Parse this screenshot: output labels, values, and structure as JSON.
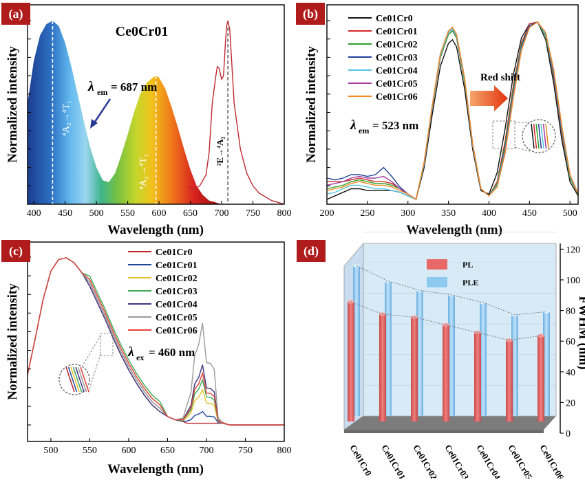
{
  "panels": {
    "a": {
      "label": "(a)",
      "title": "Ce0Cr01",
      "lambda_sym": "λ",
      "lambda_sub": "em",
      "lambda_eq": "= 687 nm",
      "trans1": "⁴A₂→⁴T₁",
      "trans2": "⁴A₂→⁴T₁",
      "trans3": "²E→⁴A₂"
    },
    "b": {
      "label": "(b)",
      "red_shift": "Red shift",
      "lambda_sym": "λ",
      "lambda_sub": "em",
      "lambda_eq": "= 523 nm"
    },
    "c": {
      "label": "(c)",
      "lambda_sym": "λ",
      "lambda_sub": "ex",
      "lambda_eq": "= 460 nm"
    },
    "d": {
      "label": "(d)",
      "ylabel": "FWHM (nm)"
    }
  },
  "chart_data": [
    {
      "type": "line",
      "panel": "a",
      "xlabel": "Wavelength (nm)",
      "ylabel": "Normalized intensity",
      "xlim": [
        390,
        800
      ],
      "xticks": [
        400,
        450,
        500,
        550,
        600,
        650,
        700,
        750,
        800
      ],
      "series": [
        {
          "role": "excitation (filled)",
          "x": [
            390,
            400,
            410,
            420,
            430,
            440,
            450,
            460,
            470,
            480,
            490,
            500,
            510,
            520,
            530,
            540,
            550,
            560,
            570,
            580,
            590,
            595,
            600,
            610,
            620,
            630,
            640,
            650,
            660,
            670,
            680,
            690,
            700
          ],
          "y": [
            0.55,
            0.78,
            0.92,
            0.98,
            1.0,
            0.97,
            0.88,
            0.75,
            0.6,
            0.45,
            0.31,
            0.2,
            0.13,
            0.12,
            0.17,
            0.27,
            0.38,
            0.5,
            0.6,
            0.66,
            0.69,
            0.7,
            0.69,
            0.63,
            0.53,
            0.42,
            0.3,
            0.19,
            0.1,
            0.05,
            0.02,
            0.01,
            0.0
          ],
          "color": "#333333"
        },
        {
          "role": "emission",
          "x": [
            645,
            655,
            665,
            675,
            680,
            685,
            690,
            693,
            696,
            700,
            703,
            706,
            708,
            710,
            713,
            716,
            720,
            730,
            740,
            750,
            760,
            770,
            780,
            790,
            800
          ],
          "y": [
            0.1,
            0.08,
            0.1,
            0.16,
            0.28,
            0.55,
            0.68,
            0.75,
            0.74,
            0.68,
            0.7,
            0.88,
            0.97,
            1.0,
            0.95,
            0.78,
            0.55,
            0.3,
            0.17,
            0.1,
            0.06,
            0.04,
            0.02,
            0.01,
            0.0
          ],
          "color": "#c0272d"
        }
      ],
      "markers": [
        430,
        595,
        710
      ]
    },
    {
      "type": "line",
      "panel": "b",
      "xlabel": "Wavelength (nm)",
      "ylabel": "Normalized intensity",
      "xlim": [
        200,
        510
      ],
      "xticks": [
        200,
        250,
        300,
        350,
        400,
        450,
        500
      ],
      "x": [
        200,
        210,
        220,
        230,
        240,
        250,
        260,
        270,
        280,
        290,
        300,
        310,
        320,
        330,
        340,
        350,
        355,
        360,
        370,
        380,
        390,
        400,
        410,
        420,
        430,
        440,
        450,
        460,
        470,
        480,
        490,
        500,
        510
      ],
      "series": [
        {
          "name": "Ce01Cr0",
          "color": "#111111",
          "y": [
            0.0,
            0.02,
            0.04,
            0.06,
            0.06,
            0.05,
            0.05,
            0.05,
            0.05,
            0.04,
            0.02,
            0.0,
            0.18,
            0.48,
            0.75,
            0.88,
            0.9,
            0.86,
            0.62,
            0.28,
            0.05,
            0.03,
            0.15,
            0.4,
            0.7,
            0.91,
            0.99,
            1.0,
            0.9,
            0.65,
            0.33,
            0.1,
            0.02
          ]
        },
        {
          "name": "Ce01Cr01",
          "color": "#d62728",
          "y": [
            0.1,
            0.1,
            0.1,
            0.11,
            0.12,
            0.11,
            0.1,
            0.1,
            0.09,
            0.06,
            0.03,
            0.0,
            0.2,
            0.52,
            0.8,
            0.93,
            0.95,
            0.91,
            0.66,
            0.3,
            0.06,
            0.02,
            0.1,
            0.33,
            0.64,
            0.88,
            0.99,
            1.0,
            0.92,
            0.68,
            0.36,
            0.12,
            0.03
          ]
        },
        {
          "name": "Ce01Cr02",
          "color": "#2ca02c",
          "y": [
            0.06,
            0.07,
            0.08,
            0.1,
            0.11,
            0.1,
            0.09,
            0.09,
            0.08,
            0.06,
            0.03,
            0.0,
            0.2,
            0.52,
            0.8,
            0.93,
            0.95,
            0.91,
            0.66,
            0.3,
            0.06,
            0.02,
            0.09,
            0.31,
            0.62,
            0.87,
            0.98,
            1.0,
            0.92,
            0.69,
            0.37,
            0.12,
            0.03
          ]
        },
        {
          "name": "Ce01Cr03",
          "color": "#1f3d99",
          "y": [
            0.12,
            0.11,
            0.12,
            0.14,
            0.14,
            0.13,
            0.14,
            0.18,
            0.13,
            0.07,
            0.03,
            0.0,
            0.2,
            0.52,
            0.81,
            0.94,
            0.96,
            0.92,
            0.67,
            0.3,
            0.06,
            0.02,
            0.08,
            0.29,
            0.6,
            0.86,
            0.98,
            1.0,
            0.93,
            0.7,
            0.38,
            0.13,
            0.03
          ]
        },
        {
          "name": "Ce01Cr04",
          "color": "#56c4e0",
          "y": [
            0.03,
            0.04,
            0.06,
            0.08,
            0.08,
            0.07,
            0.06,
            0.06,
            0.05,
            0.04,
            0.02,
            0.0,
            0.2,
            0.52,
            0.81,
            0.94,
            0.96,
            0.92,
            0.67,
            0.3,
            0.06,
            0.02,
            0.08,
            0.28,
            0.59,
            0.85,
            0.97,
            1.0,
            0.93,
            0.71,
            0.39,
            0.13,
            0.03
          ]
        },
        {
          "name": "Ce01Cr05",
          "color": "#a13ca1",
          "y": [
            0.08,
            0.09,
            0.1,
            0.12,
            0.13,
            0.12,
            0.12,
            0.13,
            0.1,
            0.06,
            0.03,
            0.0,
            0.21,
            0.53,
            0.82,
            0.95,
            0.97,
            0.93,
            0.68,
            0.31,
            0.06,
            0.02,
            0.07,
            0.27,
            0.58,
            0.84,
            0.97,
            1.0,
            0.94,
            0.72,
            0.4,
            0.14,
            0.03
          ]
        },
        {
          "name": "Ce01Cr06",
          "color": "#f08a1c",
          "y": [
            0.05,
            0.06,
            0.07,
            0.09,
            0.1,
            0.09,
            0.08,
            0.08,
            0.07,
            0.05,
            0.03,
            0.0,
            0.21,
            0.53,
            0.82,
            0.95,
            0.97,
            0.93,
            0.68,
            0.31,
            0.06,
            0.02,
            0.07,
            0.26,
            0.57,
            0.84,
            0.97,
            1.0,
            0.94,
            0.73,
            0.41,
            0.14,
            0.03
          ]
        }
      ]
    },
    {
      "type": "line",
      "panel": "c",
      "xlabel": "Wavelength (nm)",
      "ylabel": "Normalized intensity",
      "xlim": [
        470,
        800
      ],
      "xticks": [
        500,
        550,
        600,
        650,
        700,
        750,
        800
      ],
      "x": [
        470,
        480,
        490,
        500,
        510,
        520,
        530,
        540,
        550,
        560,
        570,
        580,
        590,
        600,
        610,
        620,
        630,
        640,
        650,
        660,
        670,
        675,
        680,
        685,
        690,
        695,
        700,
        705,
        710,
        715,
        720,
        730,
        740,
        750,
        760,
        770,
        780,
        790,
        800
      ],
      "series": [
        {
          "name": "Ce01Cr0",
          "color": "#c0272d",
          "peak": 0.0,
          "y": [
            0.3,
            0.52,
            0.75,
            0.92,
            0.99,
            1.0,
            0.97,
            0.91,
            0.83,
            0.73,
            0.63,
            0.52,
            0.42,
            0.33,
            0.25,
            0.18,
            0.12,
            0.08,
            0.05,
            0.03,
            0.02,
            0.01,
            0.01,
            0.01,
            0.01,
            0.01,
            0.01,
            0.01,
            0.01,
            0.01,
            0.01,
            0.0,
            0.0,
            0.0,
            0.0,
            0.0,
            0.0,
            0.0,
            0.0
          ]
        },
        {
          "name": "Ce01Cr01",
          "color": "#1f4a9a",
          "peak": 0.07
        },
        {
          "name": "Ce01Cr02",
          "color": "#e8c12a",
          "peak": 0.2
        },
        {
          "name": "Ce01Cr03",
          "color": "#3aaa5a",
          "peak": 0.26
        },
        {
          "name": "Ce01Cr04",
          "color": "#3d3580",
          "peak": 0.35
        },
        {
          "name": "Ce01Cr05",
          "color": "#9a9a9a",
          "peak": 0.6
        },
        {
          "name": "Ce01Cr06",
          "color": "#e2413a",
          "peak": 0.3
        }
      ]
    },
    {
      "type": "bar",
      "panel": "d",
      "ylabel": "FWHM (nm)",
      "ylim": [
        0,
        120
      ],
      "yticks": [
        0,
        20,
        40,
        60,
        80,
        100,
        120
      ],
      "categories": [
        "Ce01Cr0",
        "Ce01Cr01",
        "Ce01Cr02",
        "Ce01Cr03",
        "Ce01Cr04",
        "Ce01Cr05",
        "Ce01Cr06"
      ],
      "series": [
        {
          "name": "PL",
          "color": "#e86868",
          "values": [
            78,
            70,
            68,
            63,
            58,
            53,
            56
          ]
        },
        {
          "name": "PLE",
          "color": "#8ec9f0",
          "values": [
            98,
            88,
            82,
            79,
            74,
            66,
            68
          ]
        }
      ]
    }
  ]
}
